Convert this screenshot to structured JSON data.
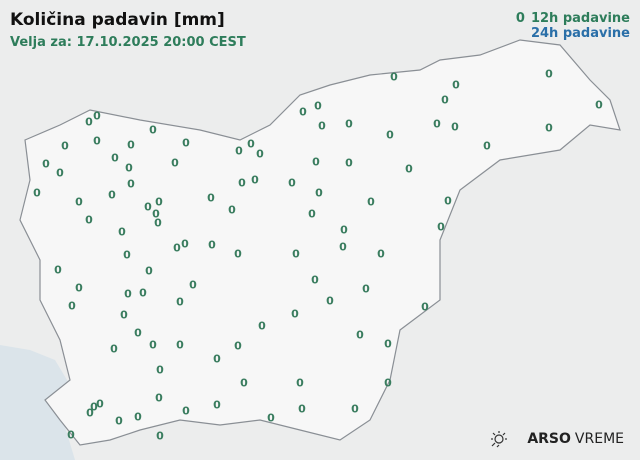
{
  "header": {
    "title": "Količina padavin [mm]",
    "subtitle": "Velja za: 17.10.2025 20:00 CEST"
  },
  "legend": {
    "sample_value": "0",
    "label_12h": "12h padavine",
    "label_24h": "24h padavine",
    "color_12h": "#2e7d5b",
    "color_24h": "#2a6fa8"
  },
  "stations": {
    "values": [
      "0",
      "0",
      "0",
      "0",
      "0",
      "0",
      "0",
      "0",
      "0",
      "0",
      "0",
      "0",
      "0",
      "0",
      "0",
      "0",
      "0",
      "0",
      "0",
      "0",
      "0",
      "0",
      "0",
      "0",
      "0",
      "0",
      "0",
      "0",
      "0",
      "0",
      "0",
      "0",
      "0",
      "0",
      "0",
      "0",
      "0",
      "0",
      "0",
      "0",
      "0",
      "0",
      "0",
      "0",
      "0",
      "0",
      "0",
      "0",
      "0",
      "0",
      "0",
      "0",
      "0",
      "0",
      "0",
      "0",
      "0",
      "0",
      "0",
      "0",
      "0",
      "0",
      "0",
      "0",
      "0",
      "0",
      "0",
      "0",
      "0",
      "0",
      "0",
      "0",
      "0",
      "0",
      "0",
      "0",
      "0",
      "0",
      "0",
      "0",
      "0",
      "0",
      "0",
      "0",
      "0",
      "0",
      "0",
      "0",
      "0",
      "0",
      "0",
      "0",
      "0",
      "0",
      "0",
      "0",
      "0",
      "0",
      "0",
      "0",
      "0"
    ]
  },
  "logo": {
    "brand": "ARSO",
    "product": "VREME",
    "icon": "sun-cloud-icon"
  },
  "colors": {
    "land": "#f7f7f7",
    "sea": "#dbe4ea",
    "border": "#8a8f95"
  }
}
